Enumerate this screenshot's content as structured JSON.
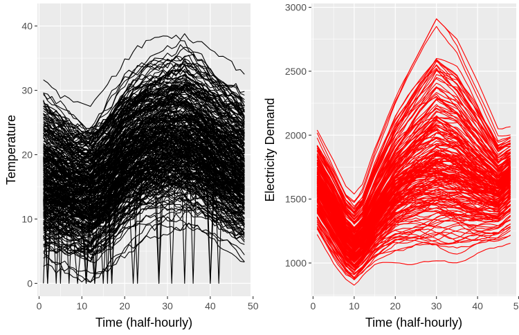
{
  "chart_data": [
    {
      "type": "line",
      "xlabel": "Time (half-hourly)",
      "ylabel": "Temperature",
      "xlim": [
        -0.4,
        49.4
      ],
      "ylim": [
        -2,
        43.5
      ],
      "xticks": [
        0,
        10,
        20,
        30,
        40,
        50
      ],
      "yticks": [
        0,
        10,
        20,
        30,
        40
      ],
      "grid": true,
      "line_color": "#000000",
      "panel_background": "#ebebeb",
      "x_range": [
        1,
        48
      ],
      "n_series": 300,
      "mean_curve": [
        [
          1,
          15.5
        ],
        [
          8,
          14.3
        ],
        [
          12,
          14.1
        ],
        [
          16,
          15.8
        ],
        [
          20,
          18.8
        ],
        [
          25,
          20.8
        ],
        [
          30,
          21.8
        ],
        [
          34,
          21.9
        ],
        [
          38,
          20.8
        ],
        [
          42,
          19.0
        ],
        [
          46,
          17.2
        ],
        [
          48,
          16.5
        ]
      ],
      "envelope_max": [
        [
          1,
          33.5
        ],
        [
          8,
          28.5
        ],
        [
          12,
          27.5
        ],
        [
          16,
          31.5
        ],
        [
          20,
          35.5
        ],
        [
          25,
          38.5
        ],
        [
          30,
          40.0
        ],
        [
          34,
          41.0
        ],
        [
          38,
          38.5
        ],
        [
          42,
          36.0
        ],
        [
          46,
          34.5
        ],
        [
          48,
          33.0
        ]
      ],
      "envelope_min": [
        [
          1,
          3.0
        ],
        [
          8,
          1.5
        ],
        [
          12,
          0.5
        ],
        [
          16,
          2.5
        ],
        [
          20,
          5.5
        ],
        [
          25,
          8.5
        ],
        [
          30,
          9.0
        ],
        [
          34,
          9.0
        ],
        [
          38,
          8.0
        ],
        [
          42,
          6.0
        ],
        [
          46,
          4.0
        ],
        [
          48,
          3.5
        ]
      ]
    },
    {
      "type": "line",
      "xlabel": "Time (half-hourly)",
      "ylabel": "Electricity Demand",
      "xlim": [
        -0.4,
        49.4
      ],
      "ylim": [
        740,
        3030
      ],
      "xticks": [
        0,
        10,
        20,
        30,
        40,
        50
      ],
      "yticks": [
        1000,
        1500,
        2000,
        2500,
        3000
      ],
      "grid": true,
      "line_color": "#ff0000",
      "panel_background": "#ebebeb",
      "x_range": [
        1,
        48
      ],
      "n_series": 200,
      "mean_curve": [
        [
          1,
          1600
        ],
        [
          5,
          1380
        ],
        [
          8,
          1190
        ],
        [
          10,
          1110
        ],
        [
          12,
          1170
        ],
        [
          15,
          1340
        ],
        [
          20,
          1560
        ],
        [
          25,
          1680
        ],
        [
          30,
          1740
        ],
        [
          35,
          1710
        ],
        [
          40,
          1620
        ],
        [
          45,
          1560
        ],
        [
          48,
          1660
        ]
      ],
      "envelope_max": [
        [
          1,
          2040
        ],
        [
          5,
          1800
        ],
        [
          8,
          1600
        ],
        [
          10,
          1540
        ],
        [
          12,
          1620
        ],
        [
          15,
          1900
        ],
        [
          20,
          2300
        ],
        [
          25,
          2600
        ],
        [
          30,
          2910
        ],
        [
          35,
          2750
        ],
        [
          40,
          2420
        ],
        [
          45,
          2050
        ],
        [
          48,
          2070
        ]
      ],
      "envelope_min": [
        [
          1,
          1170
        ],
        [
          5,
          960
        ],
        [
          8,
          840
        ],
        [
          10,
          800
        ],
        [
          12,
          860
        ],
        [
          15,
          940
        ],
        [
          20,
          980
        ],
        [
          25,
          970
        ],
        [
          30,
          950
        ],
        [
          35,
          960
        ],
        [
          40,
          1020
        ],
        [
          45,
          1060
        ],
        [
          48,
          1100
        ]
      ]
    }
  ]
}
